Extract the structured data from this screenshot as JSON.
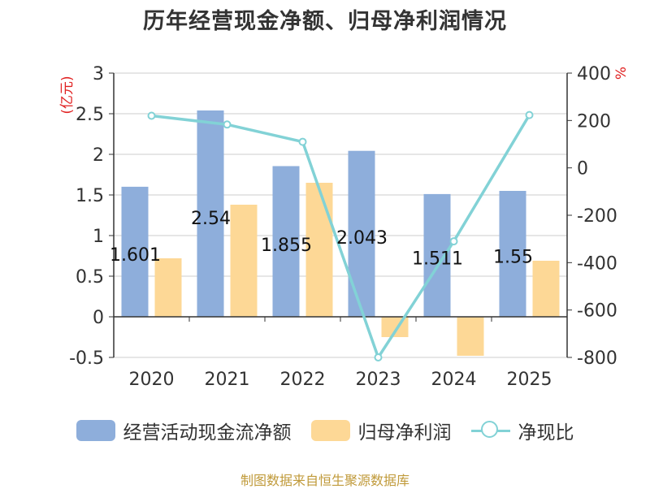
{
  "title": "历年经营现金净额、归母净利润情况",
  "source": "制图数据来自恒生聚源数据库",
  "colors": {
    "cash_flow": "#8eaedb",
    "net_profit": "#fdd896",
    "ratio": "#82d2d6",
    "unit_label": "#e02020",
    "axis": "#333333",
    "grid": "#cccccc"
  },
  "chart_data": {
    "type": "bar",
    "title": "历年经营现金净额、归母净利润情况",
    "categories": [
      "2020",
      "2021",
      "2022",
      "2023",
      "2024",
      "2025"
    ],
    "y_left": {
      "unit": "(亿元)",
      "ylim": [
        -0.5,
        3
      ],
      "ticks": [
        "-0.5",
        "0",
        "0.5",
        "1",
        "1.5",
        "2",
        "2.5",
        "3"
      ]
    },
    "y_right": {
      "unit": "%",
      "ylim": [
        -800,
        400
      ],
      "ticks": [
        "-800",
        "-600",
        "-400",
        "-200",
        "0",
        "200",
        "400"
      ]
    },
    "series": [
      {
        "name": "经营活动现金流净额",
        "type": "bar",
        "axis": "left",
        "values": [
          1.601,
          2.54,
          1.855,
          2.043,
          1.511,
          1.55
        ],
        "labels": [
          "1.601",
          "2.54",
          "1.855",
          "2.043",
          "1.511",
          "1.55"
        ]
      },
      {
        "name": "归母净利润",
        "type": "bar",
        "axis": "left",
        "values": [
          0.72,
          1.38,
          1.65,
          -0.25,
          -0.48,
          0.69
        ]
      },
      {
        "name": "净现比",
        "type": "line",
        "axis": "right",
        "values": [
          220,
          183,
          110,
          -800,
          -310,
          223
        ]
      }
    ],
    "grid": true,
    "legend_position": "bottom"
  }
}
